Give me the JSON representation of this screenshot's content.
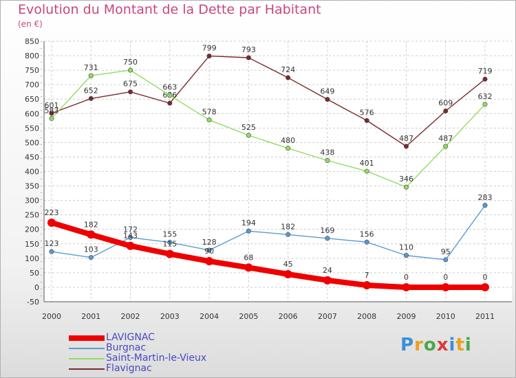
{
  "title": "Evolution du Montant de la Dette par Habitant",
  "subtitle": "(en €)",
  "logo": {
    "text": "Proxiti",
    "letter_colors": [
      "#3b8ed8",
      "#e8a21c",
      "#4aa84a",
      "#d83b3b",
      "#3b8ed8",
      "#e8a21c",
      "#4aa84a"
    ]
  },
  "chart_data": {
    "type": "line",
    "x": [
      "2000",
      "2001",
      "2002",
      "2003",
      "2004",
      "2005",
      "2006",
      "2007",
      "2008",
      "2009",
      "2010",
      "2011"
    ],
    "ylim": [
      -50,
      850
    ],
    "yticks": [
      -50,
      0,
      50,
      100,
      150,
      200,
      250,
      300,
      350,
      400,
      450,
      500,
      550,
      600,
      650,
      700,
      750,
      800,
      850
    ],
    "grid": true,
    "legend_position": "bottom-left",
    "series": [
      {
        "name": "LAVIGNAC",
        "color": "#ee0000",
        "values": [
          223,
          182,
          143,
          115,
          90,
          68,
          45,
          24,
          7,
          0,
          0,
          0
        ]
      },
      {
        "name": "Burgnac",
        "color": "#5a9ad2",
        "values": [
          123,
          103,
          172,
          155,
          128,
          194,
          182,
          169,
          156,
          110,
          95,
          283
        ]
      },
      {
        "name": "Saint-Martin-le-Vieux",
        "color": "#90dd60",
        "values": [
          583,
          731,
          750,
          663,
          578,
          525,
          480,
          438,
          401,
          346,
          487,
          632
        ]
      },
      {
        "name": "Flavignac",
        "color": "#7a2a2a",
        "values": [
          601,
          652,
          675,
          636,
          799,
          793,
          724,
          649,
          576,
          487,
          609,
          719
        ]
      }
    ]
  }
}
